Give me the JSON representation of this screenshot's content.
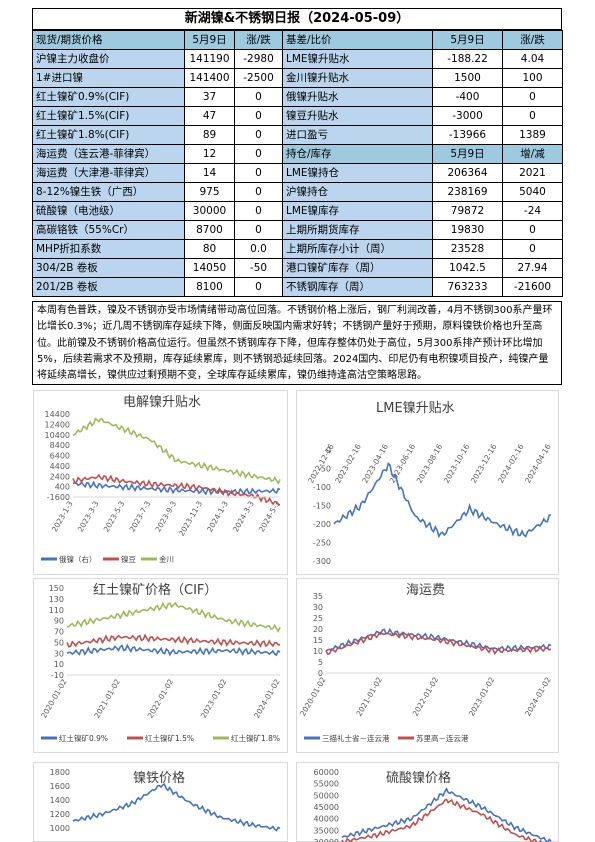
{
  "title": "新湖镍&不锈钢日报（2024-05-09）",
  "table": {
    "left_header": [
      "现货/期货价格",
      "5月9日",
      "涨/跌"
    ],
    "right_header": [
      "基差/比价",
      "5月9日",
      "涨/跌"
    ],
    "left_rows": [
      [
        "沪镍主力收盘价",
        "141190",
        "-2980"
      ],
      [
        "1#进口镍",
        "141400",
        "-2500"
      ],
      [
        "红土镍矿0.9%(CIF)",
        "37",
        "0"
      ],
      [
        "红土镍矿1.5%(CIF)",
        "47",
        "0"
      ],
      [
        "红土镍矿1.8%(CIF)",
        "89",
        "0"
      ],
      [
        "海运费（连云港-菲律宾）",
        "12",
        "0"
      ],
      [
        "海运费（大津港-菲律宾）",
        "14",
        "0"
      ],
      [
        "8-12%镍生铁（广西）",
        "975",
        "0"
      ],
      [
        "硫酸镍（电池级）",
        "30000",
        "0"
      ],
      [
        "高碳铬铁（55%Cr）",
        "8700",
        "0"
      ],
      [
        "MHP折扣系数",
        "80",
        "0.0"
      ],
      [
        "304/2B 卷板",
        "14050",
        "-50"
      ],
      [
        "201/2B 卷板",
        "8100",
        "0"
      ]
    ],
    "right_rows": [
      [
        "LME镍升贴水",
        "-188.22",
        "4.04"
      ],
      [
        "金川镍升贴水",
        "1500",
        "100"
      ],
      [
        "俄镍升贴水",
        "-400",
        "0"
      ],
      [
        "镍豆升贴水",
        "-3000",
        "0"
      ],
      [
        "进口盈亏",
        "-13966",
        "1389"
      ],
      [
        "持仓/库存",
        "5月9日",
        "增/减"
      ],
      [
        "LME镍持仓",
        "206364",
        "2021"
      ],
      [
        "沪镍持仓",
        "238169",
        "5040"
      ],
      [
        "LME镍库存",
        "79872",
        "-24"
      ],
      [
        "上期所期货库存",
        "19830",
        "0"
      ],
      [
        "上期所库存小计（周）",
        "23528",
        "0"
      ],
      [
        "港口镍矿库存（周）",
        "1042.5",
        "27.94"
      ],
      [
        "不锈钢库存（周）",
        "763233",
        "-21600"
      ]
    ]
  },
  "note": "本周有色普跌，镍及不锈钢亦受市场情绪带动高位回落。不锈钢价格上涨后，钢厂利润改善，4月不锈钢300系产量环比增长0.3%；近几周不锈钢库存延续下降，侧面反映国内需求好转；不锈钢产量好于预期，原料镍铁价格也升至高位。此前镍及不锈钢价格高位运行。但虽然不锈钢库存下降，但库存整体仍处于高位，5月300系排产预计环比增加5%，后续若需求不及预期，库存延续累库，则不锈钢恐延续回落。2024国内、印尼仍有电积镍项目投产，纯镍产量将延续高增长，镍供应过剩预期不变，全球库存延续累库，镍仍维持逢高沽空策略思路。",
  "colors": {
    "blue": "#4472c4",
    "red": "#c0504d",
    "green": "#9bbb59",
    "gray": "#a6a6a6",
    "header": "#9ecae0",
    "label": "#bcd5ee"
  },
  "chart_data": [
    {
      "type": "line",
      "title": "电解镍升贴水",
      "x": [
        "2023-1-3",
        "2023-3-3",
        "2023-5-3",
        "2023-7-3",
        "2023-9-3",
        "2023-11-3",
        "2024-1-3",
        "2024-3-3",
        "2024-5-3"
      ],
      "y_ticks": [
        "14400",
        "12400",
        "10400",
        "8400",
        "6400",
        "4400",
        "2400",
        "400",
        "-1600"
      ],
      "ylim": [
        -1600,
        14400
      ],
      "series": [
        {
          "name": "俄镍（右）",
          "values": [
            1000,
            600,
            300,
            0,
            -300,
            -500,
            -600,
            -500,
            -400
          ]
        },
        {
          "name": "镍豆",
          "values": [
            1500,
            2300,
            1400,
            900,
            600,
            200,
            -800,
            -1400,
            -3000
          ]
        },
        {
          "name": "金川",
          "values": [
            10400,
            13400,
            11400,
            9400,
            5400,
            4400,
            3400,
            2400,
            1500
          ]
        }
      ]
    },
    {
      "type": "line",
      "title": "LME镍升贴水",
      "x": [
        "2022-12-16",
        "2023-02-16",
        "2023-04-16",
        "2023-06-16",
        "2023-08-16",
        "2023-10-16",
        "2023-12-16",
        "2024-02-16",
        "2024-04-16"
      ],
      "y_ticks": [
        "0",
        "-50",
        "-100",
        "-150",
        "-200",
        "-250",
        "-300"
      ],
      "ylim": [
        -300,
        0
      ],
      "series": [
        {
          "name": "",
          "values": [
            -200,
            -150,
            -40,
            -180,
            -230,
            -160,
            -200,
            -230,
            -180
          ]
        }
      ]
    },
    {
      "type": "line",
      "title": "红土镍矿价格（CIF）",
      "x": [
        "2020-01-02",
        "2021-01-02",
        "2022-01-02",
        "2023-01-02",
        "2024-01-02"
      ],
      "y_ticks": [
        "150",
        "130",
        "110",
        "90",
        "70",
        "50",
        "30",
        "10",
        "-10"
      ],
      "ylim": [
        -10,
        150
      ],
      "series": [
        {
          "name": "红土镍矿0.9%",
          "values": [
            30,
            40,
            32,
            35,
            30
          ]
        },
        {
          "name": "红土镍矿1.5%",
          "values": [
            45,
            60,
            55,
            50,
            47
          ]
        },
        {
          "name": "红土镍矿1.8%",
          "values": [
            80,
            100,
            120,
            90,
            75
          ]
        }
      ]
    },
    {
      "type": "line",
      "title": "海运费",
      "x": [
        "2020-01-02",
        "2021-01-02",
        "2022-01-02",
        "2023-01-02",
        "2024-01-02"
      ],
      "y_ticks": [
        "35",
        "30",
        "25",
        "20",
        "15",
        "10",
        "5",
        "0"
      ],
      "ylim": [
        0,
        35
      ],
      "series": [
        {
          "name": "三描礼士省－连云港",
          "values": [
            10,
            19,
            16,
            11,
            12
          ]
        },
        {
          "name": "苏里高－连云港",
          "values": [
            9,
            18,
            15,
            10,
            11
          ]
        }
      ]
    },
    {
      "type": "line",
      "title": "镍铁价格",
      "y_ticks": [
        "1800",
        "1600",
        "1400",
        "1200",
        "1000"
      ],
      "ylim": [
        800,
        1800
      ],
      "series": [
        {
          "name": "",
          "values": [
            1100,
            1200,
            1350,
            1620,
            1350,
            1150,
            1050,
            980
          ]
        }
      ]
    },
    {
      "type": "line",
      "title": "硫酸镍价格",
      "y_ticks": [
        "60000",
        "55000",
        "50000",
        "45000",
        "40000",
        "35000",
        "30000"
      ],
      "ylim": [
        30000,
        60000
      ],
      "series": [
        {
          "name": "",
          "values": [
            32000,
            36000,
            40000,
            52000,
            45000,
            36000,
            30000
          ]
        },
        {
          "name": "",
          "values": [
            30000,
            33000,
            37000,
            48000,
            42000,
            33000,
            28000
          ]
        }
      ]
    }
  ]
}
